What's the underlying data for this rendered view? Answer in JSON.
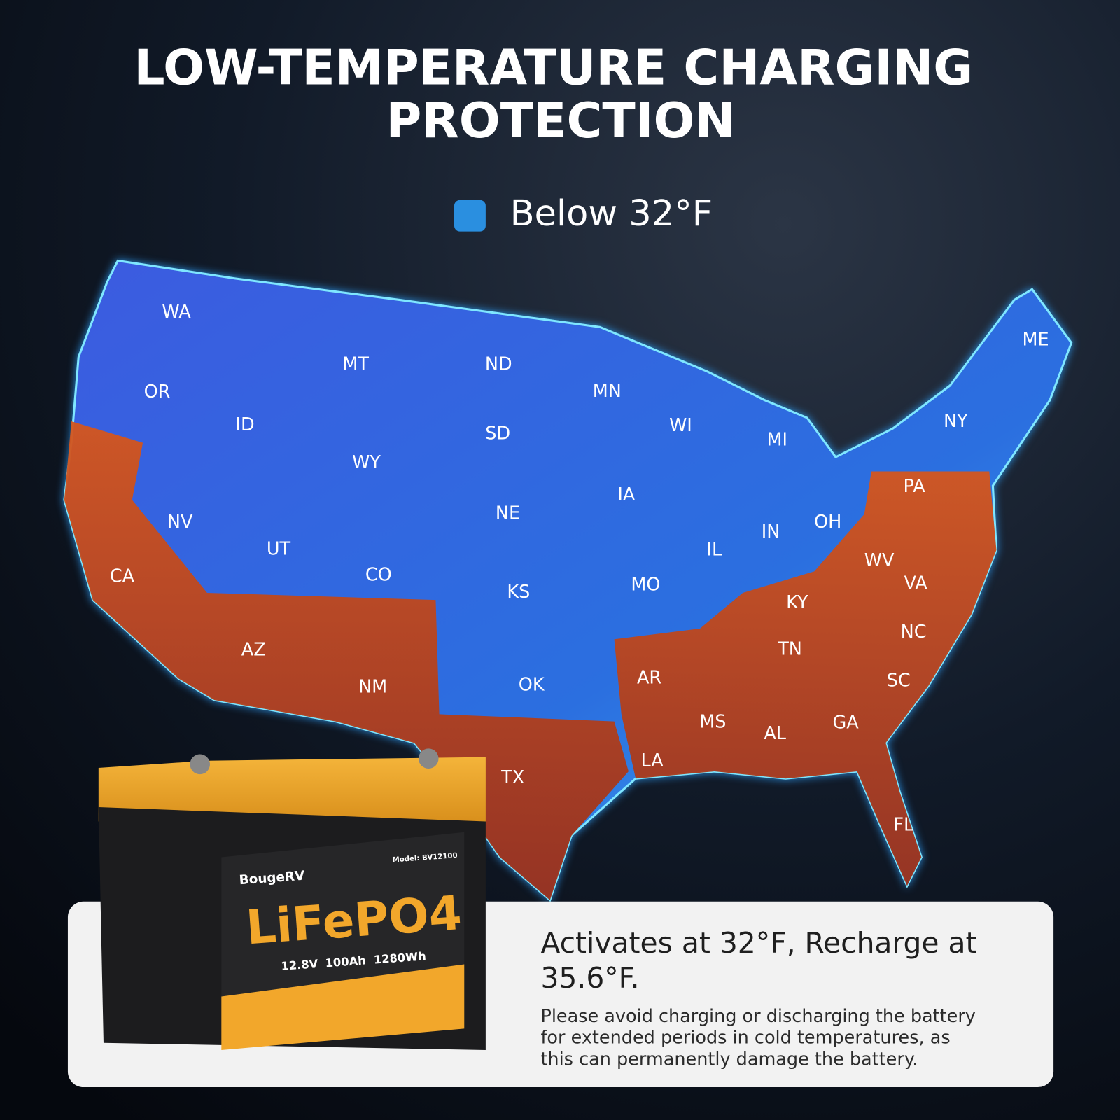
{
  "title": [
    "LOW-TEMPERATURE CHARGING",
    "PROTECTION"
  ],
  "legend": {
    "label": "Below 32°F",
    "color": "#2a8fe0"
  },
  "map": {
    "states": [
      "WA",
      "OR",
      "MT",
      "ND",
      "MN",
      "ID",
      "SD",
      "WY",
      "WI",
      "MI",
      "ME",
      "NY",
      "PA",
      "NV",
      "UT",
      "CO",
      "NE",
      "IA",
      "IN",
      "OH",
      "IL",
      "CA",
      "KS",
      "MO",
      "WV",
      "VA",
      "KY",
      "NC",
      "TN",
      "AZ",
      "NM",
      "OK",
      "AR",
      "SC",
      "MS",
      "AL",
      "GA",
      "LA",
      "TX",
      "FL"
    ]
  },
  "battery": {
    "brand": "BougeRV",
    "model": "Model: BV12100",
    "chemistry": "LiFePO4",
    "specs": [
      "12.8V",
      "100Ah",
      "1280Wh"
    ]
  },
  "card": {
    "heading_lines": [
      "Activates at 32°F, Recharge at",
      "35.6°F."
    ],
    "body_lines": [
      "Please avoid charging or discharging the battery",
      "for extended periods in cold temperatures, as",
      "this can permanently damage the battery."
    ]
  }
}
